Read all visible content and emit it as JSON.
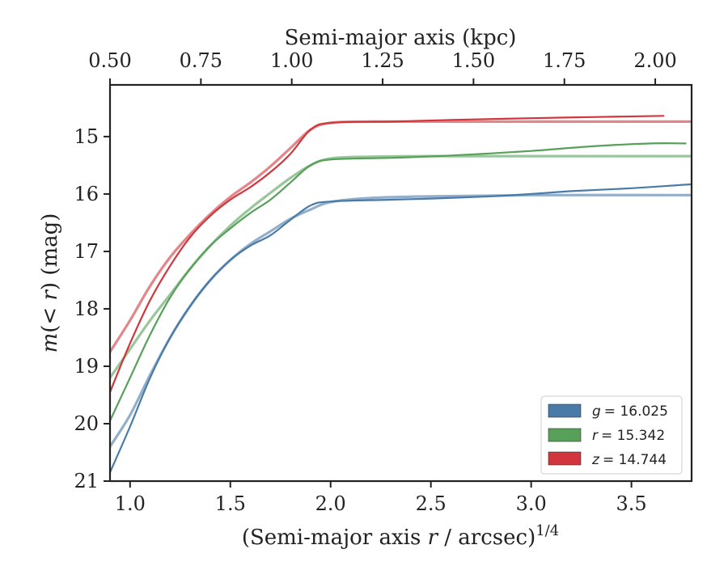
{
  "chart_data": {
    "type": "line",
    "xlabel": "(Semi-major axis r / arcsec)^1/4",
    "xlabel_parts": [
      "(Semi-major axis ",
      "r",
      " / arcsec)",
      "1/4"
    ],
    "ylabel": "m(<r) (mag)",
    "ylabel_parts": [
      "m",
      "(< ",
      "r",
      ") (mag)"
    ],
    "top_xlabel": "Semi-major axis (kpc)",
    "xlim": [
      0.9,
      3.8
    ],
    "ylim": [
      21,
      14.1
    ],
    "top_xlim": [
      0.5,
      2.1
    ],
    "x_ticks": [
      1.0,
      1.5,
      2.0,
      2.5,
      3.0,
      3.5
    ],
    "x_tick_labels": [
      "1.0",
      "1.5",
      "2.0",
      "2.5",
      "3.0",
      "3.5"
    ],
    "y_ticks": [
      15,
      16,
      17,
      18,
      19,
      20,
      21
    ],
    "y_tick_labels": [
      "15",
      "16",
      "17",
      "18",
      "19",
      "20",
      "21"
    ],
    "top_ticks": [
      0.5,
      0.75,
      1.0,
      1.25,
      1.5,
      1.75,
      2.0
    ],
    "top_tick_labels": [
      "0.50",
      "0.75",
      "1.00",
      "1.25",
      "1.50",
      "1.75",
      "2.00"
    ],
    "legend_position": "lower-right",
    "series": [
      {
        "name": "g = 16.025",
        "legend_var": "g",
        "legend_value": "= 16.025",
        "color": "#4a7aa8",
        "data": [
          [
            0.9,
            20.85
          ],
          [
            1.0,
            20.05
          ],
          [
            1.1,
            19.2
          ],
          [
            1.2,
            18.5
          ],
          [
            1.3,
            17.95
          ],
          [
            1.4,
            17.5
          ],
          [
            1.5,
            17.15
          ],
          [
            1.6,
            16.9
          ],
          [
            1.7,
            16.72
          ],
          [
            1.8,
            16.45
          ],
          [
            1.9,
            16.2
          ],
          [
            2.0,
            16.13
          ],
          [
            2.3,
            16.1
          ],
          [
            2.5,
            16.08
          ],
          [
            2.8,
            16.04
          ],
          [
            3.0,
            16.0
          ],
          [
            3.2,
            15.95
          ],
          [
            3.5,
            15.9
          ],
          [
            3.8,
            15.83
          ]
        ],
        "model": [
          [
            0.9,
            20.4
          ],
          [
            1.0,
            19.85
          ],
          [
            1.1,
            19.15
          ],
          [
            1.2,
            18.5
          ],
          [
            1.3,
            17.95
          ],
          [
            1.4,
            17.5
          ],
          [
            1.5,
            17.15
          ],
          [
            1.6,
            16.87
          ],
          [
            1.7,
            16.65
          ],
          [
            1.8,
            16.43
          ],
          [
            1.9,
            16.27
          ],
          [
            2.0,
            16.14
          ],
          [
            2.2,
            16.07
          ],
          [
            2.5,
            16.04
          ],
          [
            3.0,
            16.02
          ],
          [
            3.8,
            16.02
          ]
        ]
      },
      {
        "name": "r = 15.342",
        "legend_var": "r",
        "legend_value": "= 15.342",
        "color": "#57a05a",
        "data": [
          [
            0.9,
            19.95
          ],
          [
            1.0,
            19.2
          ],
          [
            1.1,
            18.45
          ],
          [
            1.2,
            17.8
          ],
          [
            1.3,
            17.3
          ],
          [
            1.4,
            16.9
          ],
          [
            1.5,
            16.6
          ],
          [
            1.6,
            16.33
          ],
          [
            1.7,
            16.1
          ],
          [
            1.8,
            15.8
          ],
          [
            1.9,
            15.5
          ],
          [
            2.0,
            15.4
          ],
          [
            2.3,
            15.37
          ],
          [
            2.6,
            15.33
          ],
          [
            3.0,
            15.25
          ],
          [
            3.3,
            15.17
          ],
          [
            3.6,
            15.12
          ],
          [
            3.77,
            15.12
          ]
        ],
        "model": [
          [
            0.9,
            19.2
          ],
          [
            1.0,
            18.7
          ],
          [
            1.1,
            18.2
          ],
          [
            1.2,
            17.75
          ],
          [
            1.3,
            17.3
          ],
          [
            1.4,
            16.9
          ],
          [
            1.5,
            16.55
          ],
          [
            1.6,
            16.25
          ],
          [
            1.7,
            15.98
          ],
          [
            1.8,
            15.72
          ],
          [
            1.9,
            15.5
          ],
          [
            2.0,
            15.38
          ],
          [
            2.2,
            15.35
          ],
          [
            2.5,
            15.34
          ],
          [
            3.0,
            15.34
          ],
          [
            3.8,
            15.34
          ]
        ]
      },
      {
        "name": "z = 14.744",
        "legend_var": "z",
        "legend_value": "= 14.744",
        "color": "#d0363c",
        "data": [
          [
            0.9,
            19.45
          ],
          [
            1.0,
            18.6
          ],
          [
            1.1,
            17.85
          ],
          [
            1.2,
            17.25
          ],
          [
            1.3,
            16.75
          ],
          [
            1.4,
            16.38
          ],
          [
            1.5,
            16.1
          ],
          [
            1.6,
            15.88
          ],
          [
            1.7,
            15.62
          ],
          [
            1.8,
            15.3
          ],
          [
            1.9,
            14.88
          ],
          [
            2.0,
            14.76
          ],
          [
            2.3,
            14.74
          ],
          [
            2.6,
            14.71
          ],
          [
            3.0,
            14.68
          ],
          [
            3.3,
            14.66
          ],
          [
            3.66,
            14.64
          ]
        ],
        "model": [
          [
            0.9,
            18.75
          ],
          [
            1.0,
            18.2
          ],
          [
            1.1,
            17.6
          ],
          [
            1.2,
            17.1
          ],
          [
            1.3,
            16.7
          ],
          [
            1.4,
            16.35
          ],
          [
            1.5,
            16.05
          ],
          [
            1.6,
            15.8
          ],
          [
            1.7,
            15.52
          ],
          [
            1.8,
            15.2
          ],
          [
            1.9,
            14.88
          ],
          [
            2.0,
            14.76
          ],
          [
            2.2,
            14.74
          ],
          [
            2.5,
            14.74
          ],
          [
            3.0,
            14.74
          ],
          [
            3.8,
            14.74
          ]
        ]
      }
    ]
  }
}
